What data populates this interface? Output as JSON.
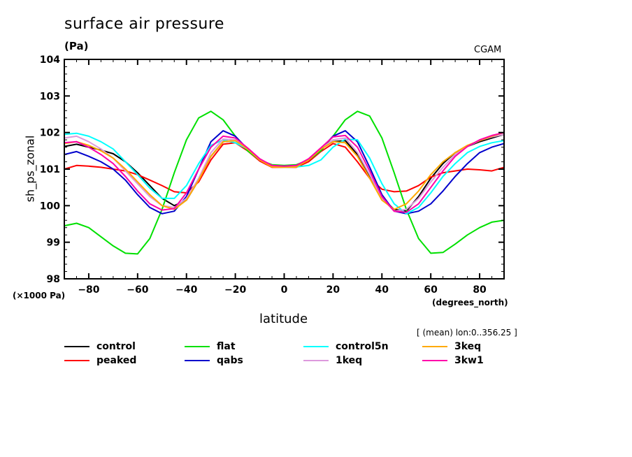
{
  "chart_data": {
    "type": "line",
    "title": "surface air pressure",
    "units": "(Pa)",
    "source_label": "CGAM",
    "ylabel": "sh_ps_zonal",
    "y_scale_note": "(×1000 Pa)",
    "xlabel": "latitude",
    "x_units": "(degrees_north)",
    "subset_note": "[ (mean) lon:0..356.25 ]",
    "xlim": [
      -90,
      90
    ],
    "ylim": [
      98,
      104
    ],
    "x_ticks": [
      -80,
      -60,
      -40,
      -20,
      0,
      20,
      40,
      60,
      80
    ],
    "x_tick_labels": [
      "−80",
      "−60",
      "−40",
      "−20",
      "0",
      "20",
      "40",
      "60",
      "80"
    ],
    "y_ticks": [
      98,
      99,
      100,
      101,
      102,
      103,
      104
    ],
    "y_tick_labels": [
      "98",
      "99",
      "100",
      "101",
      "102",
      "103",
      "104"
    ],
    "grid": false,
    "legend_position": "bottom",
    "x": [
      -90,
      -85,
      -80,
      -75,
      -70,
      -65,
      -60,
      -55,
      -50,
      -45,
      -40,
      -35,
      -30,
      -25,
      -20,
      -15,
      -10,
      -5,
      0,
      5,
      10,
      15,
      20,
      25,
      30,
      35,
      40,
      45,
      50,
      55,
      60,
      65,
      70,
      75,
      80,
      85,
      90
    ],
    "series": [
      {
        "name": "control",
        "color": "#000000",
        "values": [
          101.62,
          101.68,
          101.6,
          101.52,
          101.42,
          101.2,
          100.9,
          100.55,
          100.2,
          100.0,
          100.15,
          100.7,
          101.35,
          101.75,
          101.78,
          101.55,
          101.25,
          101.07,
          101.06,
          101.08,
          101.25,
          101.55,
          101.75,
          101.78,
          101.4,
          100.8,
          100.2,
          99.9,
          99.85,
          100.25,
          100.75,
          101.15,
          101.45,
          101.62,
          101.75,
          101.85,
          101.95
        ]
      },
      {
        "name": "peaked",
        "color": "#ff0000",
        "values": [
          101.0,
          101.1,
          101.08,
          101.05,
          101.0,
          100.95,
          100.85,
          100.7,
          100.55,
          100.38,
          100.35,
          100.65,
          101.25,
          101.68,
          101.72,
          101.5,
          101.22,
          101.05,
          101.05,
          101.05,
          101.2,
          101.48,
          101.7,
          101.6,
          101.2,
          100.75,
          100.45,
          100.38,
          100.4,
          100.55,
          100.78,
          100.9,
          100.95,
          101.0,
          100.98,
          100.95,
          101.05
        ]
      },
      {
        "name": "flat",
        "color": "#00e000",
        "values": [
          99.45,
          99.52,
          99.4,
          99.15,
          98.9,
          98.7,
          98.68,
          99.1,
          99.9,
          100.9,
          101.8,
          102.4,
          102.58,
          102.35,
          101.9,
          101.5,
          101.25,
          101.12,
          101.1,
          101.12,
          101.25,
          101.5,
          101.9,
          102.35,
          102.58,
          102.45,
          101.85,
          100.9,
          99.9,
          99.1,
          98.7,
          98.72,
          98.95,
          99.2,
          99.4,
          99.55,
          99.6
        ]
      },
      {
        "name": "qabs",
        "color": "#0000cc",
        "values": [
          101.4,
          101.48,
          101.35,
          101.2,
          101.0,
          100.7,
          100.3,
          99.95,
          99.78,
          99.85,
          100.25,
          101.0,
          101.75,
          102.05,
          101.9,
          101.55,
          101.25,
          101.08,
          101.08,
          101.1,
          101.25,
          101.55,
          101.9,
          102.05,
          101.75,
          101.05,
          100.3,
          99.85,
          99.78,
          99.85,
          100.05,
          100.4,
          100.8,
          101.15,
          101.45,
          101.6,
          101.7
        ]
      },
      {
        "name": "control5n",
        "color": "#00ffff",
        "values": [
          101.95,
          101.98,
          101.9,
          101.75,
          101.55,
          101.2,
          100.85,
          100.48,
          100.2,
          100.2,
          100.55,
          101.15,
          101.65,
          101.8,
          101.72,
          101.55,
          101.25,
          101.1,
          101.05,
          101.06,
          101.1,
          101.25,
          101.6,
          101.82,
          101.8,
          101.3,
          100.6,
          100.05,
          99.78,
          99.95,
          100.35,
          100.8,
          101.15,
          101.45,
          101.62,
          101.72,
          101.78
        ]
      },
      {
        "name": "1keq",
        "color": "#dd99dd",
        "values": [
          101.85,
          101.9,
          101.75,
          101.55,
          101.3,
          100.95,
          100.6,
          100.25,
          100.0,
          99.95,
          100.2,
          100.75,
          101.45,
          101.82,
          101.8,
          101.55,
          101.25,
          101.08,
          101.06,
          101.08,
          101.25,
          101.55,
          101.8,
          101.85,
          101.45,
          100.85,
          100.2,
          99.85,
          99.9,
          100.2,
          100.65,
          101.05,
          101.4,
          101.62,
          101.78,
          101.88,
          101.95
        ]
      },
      {
        "name": "3keq",
        "color": "#ffaa00",
        "values": [
          101.7,
          101.75,
          101.65,
          101.5,
          101.3,
          101.0,
          100.65,
          100.3,
          100.0,
          99.9,
          100.15,
          100.7,
          101.35,
          101.75,
          101.78,
          101.55,
          101.25,
          101.06,
          101.05,
          101.06,
          101.25,
          101.55,
          101.75,
          101.72,
          101.35,
          100.75,
          100.15,
          99.9,
          100.05,
          100.4,
          100.85,
          101.2,
          101.45,
          101.65,
          101.78,
          101.9,
          102.0
        ]
      },
      {
        "name": "3kw1",
        "color": "#ff00aa",
        "values": [
          101.72,
          101.75,
          101.6,
          101.4,
          101.15,
          100.8,
          100.4,
          100.05,
          99.88,
          99.92,
          100.35,
          101.0,
          101.6,
          101.9,
          101.85,
          101.58,
          101.28,
          101.1,
          101.08,
          101.1,
          101.28,
          101.58,
          101.88,
          101.92,
          101.6,
          100.95,
          100.25,
          99.85,
          99.82,
          100.05,
          100.5,
          100.95,
          101.35,
          101.62,
          101.8,
          101.92,
          102.0
        ]
      }
    ]
  }
}
